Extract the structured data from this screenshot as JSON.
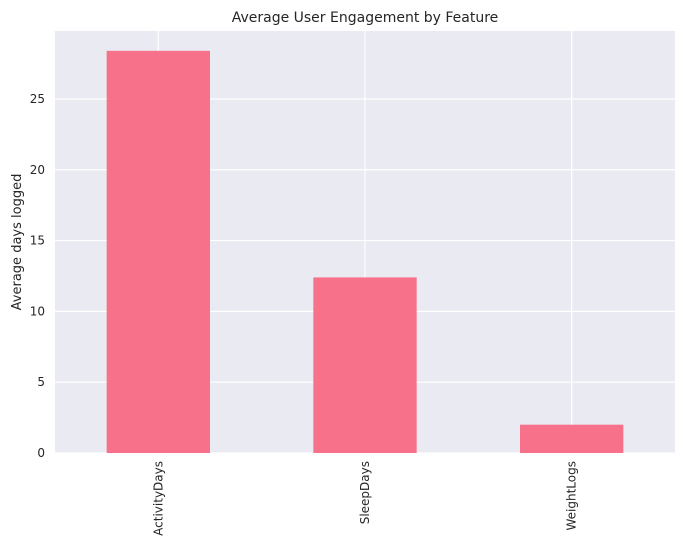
{
  "chart_data": {
    "type": "bar",
    "title": "Average User Engagement by Feature",
    "xlabel": "",
    "ylabel": "Average days logged",
    "categories": [
      "ActivityDays",
      "SleepDays",
      "WeightLogs"
    ],
    "values": [
      28.4,
      12.4,
      2.0
    ],
    "ylim": [
      0,
      29.8
    ],
    "yticks": [
      0,
      5,
      10,
      15,
      20,
      25
    ],
    "ytick_labels": [
      "0",
      "5",
      "10",
      "15",
      "20",
      "25"
    ],
    "grid": true,
    "bar_color": "#f7718a",
    "plot_background": "#eaeaf2",
    "grid_color": "#ffffff",
    "text_color": "#262626"
  }
}
